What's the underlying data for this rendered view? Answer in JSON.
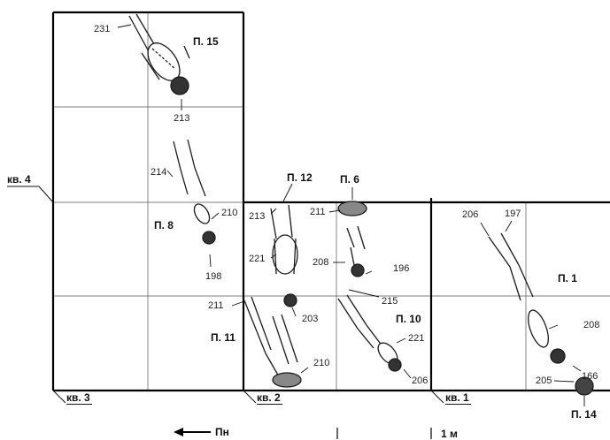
{
  "burials": {
    "p15": "П. 15",
    "p12": "П. 12",
    "p6": "П. 6",
    "p8": "П. 8",
    "p11": "П. 11",
    "p10": "П. 10",
    "p1": "П. 1",
    "p14": "П. 14"
  },
  "squares": {
    "kv4": "кв. 4",
    "kv3": "кв. 3",
    "kv2": "кв. 2",
    "kv1": "кв. 1"
  },
  "depths": {
    "d231": "231",
    "d213a": "213",
    "d214": "214",
    "d210a": "210",
    "d198": "198",
    "d213b": "213",
    "d221a": "221",
    "d211a": "211",
    "d208a": "208",
    "d196": "196",
    "d215": "215",
    "d211b": "211",
    "d203": "203",
    "d210b": "210",
    "d221b": "221",
    "d206a": "206",
    "d206b": "206",
    "d197": "197",
    "d208b": "208",
    "d205": "205",
    "d166": "166"
  },
  "legend": {
    "north": "Пн",
    "scale": "1 м"
  },
  "colors": {
    "lines": "#000000",
    "grid": "#555555",
    "bone": "#ffffff",
    "bone_outline": "#1a1a1a"
  }
}
